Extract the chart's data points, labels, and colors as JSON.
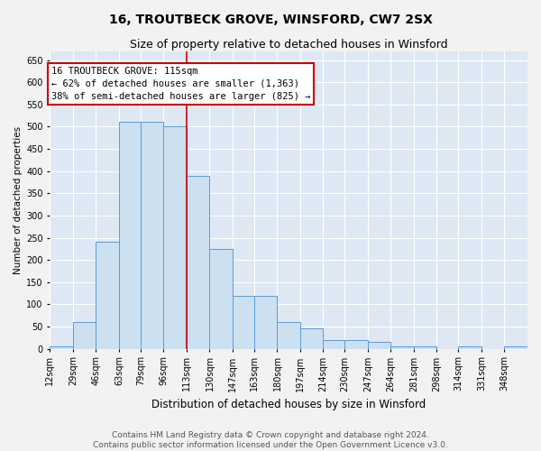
{
  "title": "16, TROUTBECK GROVE, WINSFORD, CW7 2SX",
  "subtitle": "Size of property relative to detached houses in Winsford",
  "xlabel": "Distribution of detached houses by size in Winsford",
  "ylabel": "Number of detached properties",
  "bar_edges": [
    12,
    29,
    46,
    63,
    79,
    96,
    113,
    130,
    147,
    163,
    180,
    197,
    214,
    230,
    247,
    264,
    281,
    298,
    314,
    331,
    348,
    365
  ],
  "bar_heights": [
    5,
    60,
    240,
    510,
    510,
    500,
    390,
    225,
    120,
    120,
    60,
    45,
    20,
    20,
    15,
    5,
    5,
    0,
    5,
    0,
    5
  ],
  "bar_color": "#cce0f0",
  "bar_edge_color": "#5b9bd5",
  "vline_x": 113,
  "vline_color": "#cc0000",
  "annotation_line1": "16 TROUTBECK GROVE: 115sqm",
  "annotation_line2": "← 62% of detached houses are smaller (1,363)",
  "annotation_line3": "38% of semi-detached houses are larger (825) →",
  "annotation_box_color": "#ffffff",
  "annotation_box_edgecolor": "#cc0000",
  "ylim": [
    0,
    670
  ],
  "yticks": [
    0,
    50,
    100,
    150,
    200,
    250,
    300,
    350,
    400,
    450,
    500,
    550,
    600,
    650
  ],
  "background_color": "#dde8f4",
  "grid_color": "#ffffff",
  "footer_line1": "Contains HM Land Registry data © Crown copyright and database right 2024.",
  "footer_line2": "Contains public sector information licensed under the Open Government Licence v3.0.",
  "title_fontsize": 10,
  "subtitle_fontsize": 9,
  "tick_label_fontsize": 7,
  "xlabel_fontsize": 8.5,
  "ylabel_fontsize": 7.5,
  "footer_fontsize": 6.5,
  "annot_fontsize": 7.5
}
